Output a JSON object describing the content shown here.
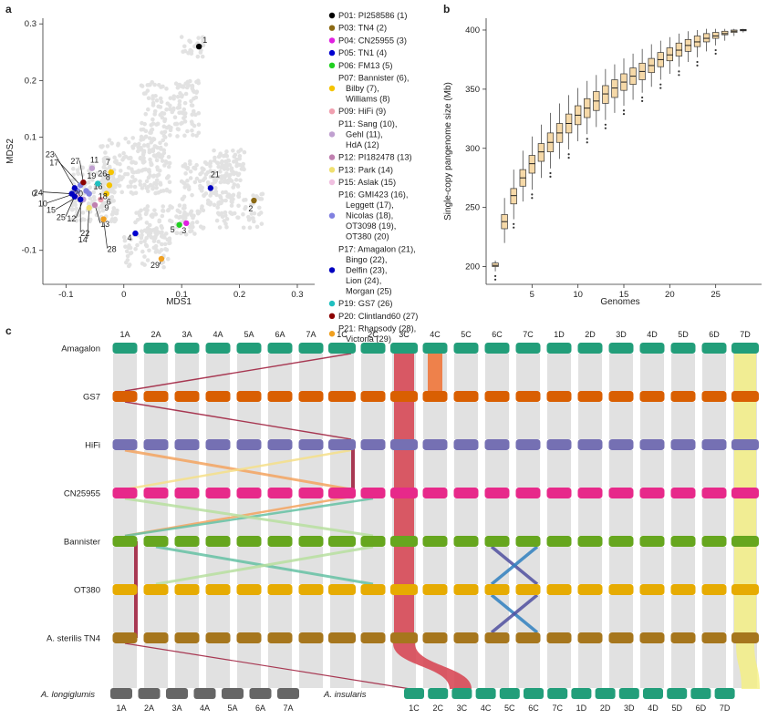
{
  "panels": {
    "a": {
      "label": "a",
      "xlabel": "MDS1",
      "ylabel": "MDS2",
      "xticks": [
        "-0.1",
        "0",
        "0.1",
        "0.2",
        "0.3"
      ],
      "yticks": [
        "0.3",
        "0.2",
        "0.1",
        "0",
        "-0.1"
      ],
      "legend": [
        {
          "text": "P01: PI258586 (1)",
          "color": "#000000",
          "lines": 1
        },
        {
          "text": "P03: TN4 (2)",
          "color": "#8b6914",
          "lines": 1
        },
        {
          "text": "P04: CN25955 (3)",
          "color": "#e020e0",
          "lines": 1
        },
        {
          "text": "P05: TN1 (4)",
          "color": "#0000d0",
          "lines": 1
        },
        {
          "text": "P06: FM13 (5)",
          "color": "#20d020",
          "lines": 1
        },
        {
          "text": "P07: Bannister (6),\nBilby (7),\nWilliams (8)",
          "color": "#f5c400",
          "lines": 3
        },
        {
          "text": "P09: HiFi (9)",
          "color": "#f0a0b0",
          "lines": 1
        },
        {
          "text": "P11: Sang (10),\nGehl (11),\nHdA (12)",
          "color": "#c0a0d0",
          "lines": 3
        },
        {
          "text": "P12: PI182478 (13)",
          "color": "#c080b0",
          "lines": 1
        },
        {
          "text": "P13: Park (14)",
          "color": "#f0e070",
          "lines": 1
        },
        {
          "text": "P15: Aslak (15)",
          "color": "#f0c0e0",
          "lines": 1
        },
        {
          "text": "P16: GMI423 (16),\nLeggett (17),\nNicolas (18),\nOT3098 (19),\nOT380 (20)",
          "color": "#8080e0",
          "lines": 5
        },
        {
          "text": "P17: Amagalon (21),\nBingo (22),\nDelfin (23),\nLion (24),\nMorgan (25)",
          "color": "#0000c0",
          "lines": 5
        },
        {
          "text": "P19: GS7 (26)",
          "color": "#20c0c0",
          "lines": 1
        },
        {
          "text": "P20: Clintland60 (27)",
          "color": "#8b0000",
          "lines": 1
        },
        {
          "text": "P21: Rhapsody (28),\nVictoria (29)",
          "color": "#f0a020",
          "lines": 2
        }
      ]
    },
    "b": {
      "label": "b",
      "xlabel": "Genomes",
      "ylabel": "Single-copy pangenome size (Mb)",
      "xticks": [
        "5",
        "10",
        "15",
        "20",
        "25"
      ],
      "yticks": [
        "200",
        "250",
        "300",
        "350",
        "400"
      ]
    },
    "c": {
      "label": "c",
      "top_chromosomes": [
        "1A",
        "2A",
        "3A",
        "4A",
        "5A",
        "6A",
        "7A",
        "1C",
        "2C",
        "3C",
        "4C",
        "5C",
        "6C",
        "7C",
        "1D",
        "2D",
        "3D",
        "4D",
        "5D",
        "6D",
        "7D"
      ],
      "genomes": [
        "Amagalon",
        "GS7",
        "HiFi",
        "CN25955",
        "Bannister",
        "OT380",
        "A. sterilis TN4"
      ],
      "genome_colors": [
        "#229e7a",
        "#d95f02",
        "#7570b3",
        "#e7298a",
        "#66a61e",
        "#e6ab02",
        "#a6761d"
      ],
      "longiglumis_label": "A. longiglumis",
      "insularis_label": "A. insularis",
      "longiglumis_chromosomes": [
        "1A",
        "2A",
        "3A",
        "4A",
        "5A",
        "6A",
        "7A"
      ],
      "insularis_chromosomes": [
        "1C",
        "2C",
        "3C",
        "4C",
        "5C",
        "6C",
        "7C",
        "1D",
        "2D",
        "3D",
        "4D",
        "5D",
        "6D",
        "7D"
      ]
    }
  },
  "chart_data": [
    {
      "type": "scatter",
      "panel": "a",
      "xlabel": "MDS1",
      "ylabel": "MDS2",
      "xlim": [
        -0.14,
        0.33
      ],
      "ylim": [
        -0.16,
        0.31
      ],
      "points": [
        {
          "id": "1",
          "x": 0.13,
          "y": 0.26,
          "color": "#000000"
        },
        {
          "id": "2",
          "x": 0.225,
          "y": -0.012,
          "color": "#8b6914"
        },
        {
          "id": "3",
          "x": 0.108,
          "y": -0.052,
          "color": "#e020e0"
        },
        {
          "id": "4",
          "x": 0.02,
          "y": -0.07,
          "color": "#0000d0"
        },
        {
          "id": "5",
          "x": 0.096,
          "y": -0.055,
          "color": "#20d020"
        },
        {
          "id": "6",
          "x": -0.03,
          "y": 0.0,
          "color": "#f5c400"
        },
        {
          "id": "7",
          "x": -0.022,
          "y": 0.038,
          "color": "#f5c400"
        },
        {
          "id": "8",
          "x": -0.025,
          "y": 0.015,
          "color": "#f5c400"
        },
        {
          "id": "9",
          "x": -0.04,
          "y": -0.01,
          "color": "#f0a0b0"
        },
        {
          "id": "10",
          "x": -0.085,
          "y": 0.0,
          "color": "#c0a0d0"
        },
        {
          "id": "11",
          "x": -0.055,
          "y": 0.045,
          "color": "#c0a0d0"
        },
        {
          "id": "12",
          "x": -0.07,
          "y": -0.01,
          "color": "#c0a0d0"
        },
        {
          "id": "13",
          "x": -0.05,
          "y": -0.02,
          "color": "#c080b0"
        },
        {
          "id": "14",
          "x": -0.06,
          "y": -0.025,
          "color": "#f0e070"
        },
        {
          "id": "15",
          "x": -0.08,
          "y": -0.005,
          "color": "#f0c0e0"
        },
        {
          "id": "16",
          "x": -0.065,
          "y": 0.005,
          "color": "#8080e0"
        },
        {
          "id": "17",
          "x": -0.075,
          "y": 0.015,
          "color": "#8080e0"
        },
        {
          "id": "18",
          "x": -0.06,
          "y": 0.0,
          "color": "#8080e0"
        },
        {
          "id": "19",
          "x": -0.07,
          "y": 0.02,
          "color": "#8080e0"
        },
        {
          "id": "20",
          "x": -0.08,
          "y": 0.005,
          "color": "#8080e0"
        },
        {
          "id": "21",
          "x": 0.15,
          "y": 0.01,
          "color": "#0000c0"
        },
        {
          "id": "22",
          "x": -0.075,
          "y": -0.01,
          "color": "#0000c0"
        },
        {
          "id": "23",
          "x": -0.085,
          "y": 0.01,
          "color": "#0000c0"
        },
        {
          "id": "24",
          "x": -0.09,
          "y": 0.0,
          "color": "#0000c0"
        },
        {
          "id": "25",
          "x": -0.085,
          "y": -0.005,
          "color": "#0000c0"
        },
        {
          "id": "26",
          "x": -0.045,
          "y": 0.018,
          "color": "#20c0c0"
        },
        {
          "id": "27",
          "x": -0.07,
          "y": 0.02,
          "color": "#8b0000"
        },
        {
          "id": "28",
          "x": -0.035,
          "y": -0.045,
          "color": "#f0a020"
        },
        {
          "id": "29",
          "x": 0.065,
          "y": -0.115,
          "color": "#f0a020"
        }
      ]
    },
    {
      "type": "box",
      "panel": "b",
      "xlabel": "Genomes",
      "ylabel": "Single-copy pangenome size (Mb)",
      "xlim": [
        0,
        30
      ],
      "ylim": [
        185,
        410
      ],
      "x": [
        1,
        2,
        3,
        4,
        5,
        6,
        7,
        8,
        9,
        10,
        11,
        12,
        13,
        14,
        15,
        16,
        17,
        18,
        19,
        20,
        21,
        22,
        23,
        24,
        25,
        26,
        27,
        28
      ],
      "median": [
        201,
        238,
        260,
        275,
        287,
        297,
        305,
        313,
        321,
        328,
        334,
        340,
        346,
        351,
        356,
        361,
        365,
        370,
        375,
        379,
        383,
        387,
        390,
        393,
        395,
        397,
        399,
        400
      ],
      "q1": [
        200,
        232,
        253,
        268,
        279,
        289,
        297,
        305,
        313,
        320,
        326,
        332,
        338,
        343,
        349,
        354,
        358,
        364,
        369,
        374,
        378,
        382,
        386,
        390,
        393,
        396,
        398,
        399.5
      ],
      "q3": [
        203,
        244,
        266,
        282,
        294,
        304,
        313,
        321,
        329,
        336,
        342,
        348,
        353,
        358,
        363,
        368,
        372,
        376,
        381,
        385,
        389,
        392,
        395,
        397,
        398,
        399,
        400,
        400.5
      ],
      "whisker_low": [
        196,
        220,
        240,
        255,
        265,
        275,
        283,
        291,
        299,
        306,
        312,
        318,
        324,
        330,
        336,
        341,
        347,
        352,
        358,
        363,
        369,
        373,
        377,
        382,
        387,
        391,
        395,
        398
      ],
      "whisker_high": [
        205,
        258,
        282,
        298,
        310,
        320,
        330,
        338,
        345,
        351,
        357,
        362,
        367,
        371,
        376,
        380,
        384,
        388,
        391,
        394,
        397,
        399,
        400,
        401,
        401,
        401,
        401,
        401
      ]
    }
  ]
}
